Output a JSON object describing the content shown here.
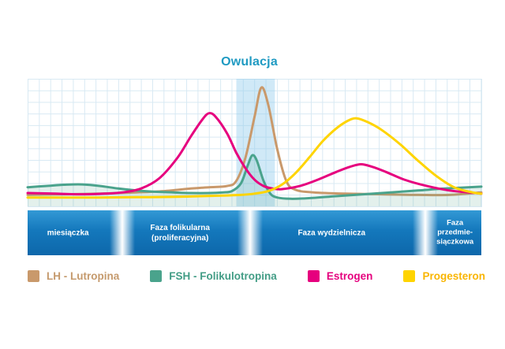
{
  "title": "Owulacja",
  "colors": {
    "title_accent": "#1f9ac2",
    "banner_blue": "#1478bc",
    "grid_line": "#d8e9f3",
    "ovulation_band": "rgba(137,199,235,0.4)"
  },
  "chart_data": {
    "type": "line",
    "title": "Owulacja",
    "xlabel": "",
    "ylabel": "",
    "grid": true,
    "x_range": [
      0,
      100
    ],
    "y_range": [
      0,
      100
    ],
    "legend_position": "bottom",
    "highlight_band": {
      "label": "Owulacja",
      "x_start": 46,
      "x_end": 54.5,
      "color": "rgba(137,199,235,0.4)"
    },
    "series": [
      {
        "name": "LH - Lutropina",
        "color": "#c9996b",
        "points": [
          [
            0,
            9
          ],
          [
            8,
            9.5
          ],
          [
            16,
            10
          ],
          [
            24,
            11
          ],
          [
            30,
            12
          ],
          [
            36,
            14
          ],
          [
            40,
            15
          ],
          [
            44,
            16
          ],
          [
            46,
            20
          ],
          [
            48,
            38
          ],
          [
            50,
            70
          ],
          [
            51.5,
            93
          ],
          [
            53,
            80
          ],
          [
            55,
            45
          ],
          [
            57,
            20
          ],
          [
            59,
            13
          ],
          [
            63,
            11
          ],
          [
            70,
            10
          ],
          [
            78,
            9.5
          ],
          [
            86,
            9
          ],
          [
            93,
            9
          ],
          [
            100,
            11
          ]
        ]
      },
      {
        "name": "FSH - Folikulotropina",
        "color": "#4aa38c",
        "fill": "rgba(82,160,139,0.16)",
        "points": [
          [
            0,
            15
          ],
          [
            4,
            16
          ],
          [
            8,
            17
          ],
          [
            12,
            17.2
          ],
          [
            16,
            16
          ],
          [
            20,
            14
          ],
          [
            24,
            12.5
          ],
          [
            28,
            11.5
          ],
          [
            32,
            11
          ],
          [
            36,
            10.5
          ],
          [
            40,
            10.5
          ],
          [
            43,
            11
          ],
          [
            45,
            12
          ],
          [
            47,
            18
          ],
          [
            48.5,
            32
          ],
          [
            49.5,
            40
          ],
          [
            50.5,
            36
          ],
          [
            52,
            20
          ],
          [
            53.5,
            10
          ],
          [
            55,
            7
          ],
          [
            58,
            6
          ],
          [
            62,
            6.5
          ],
          [
            68,
            8
          ],
          [
            74,
            9.5
          ],
          [
            80,
            11
          ],
          [
            86,
            12.5
          ],
          [
            92,
            14
          ],
          [
            100,
            15.5
          ]
        ]
      },
      {
        "name": "Estrogen",
        "color": "#e6007e",
        "points": [
          [
            0,
            10.5
          ],
          [
            6,
            10
          ],
          [
            12,
            9.5
          ],
          [
            17,
            10
          ],
          [
            21,
            11
          ],
          [
            25,
            14
          ],
          [
            29,
            22
          ],
          [
            33,
            38
          ],
          [
            36,
            55
          ],
          [
            38.5,
            68
          ],
          [
            40,
            73
          ],
          [
            41.5,
            70
          ],
          [
            44,
            57
          ],
          [
            46,
            42
          ],
          [
            48,
            30
          ],
          [
            50,
            21
          ],
          [
            52,
            16
          ],
          [
            54,
            14
          ],
          [
            56,
            13.5
          ],
          [
            60,
            16
          ],
          [
            64,
            21
          ],
          [
            68,
            27
          ],
          [
            71,
            31
          ],
          [
            73.5,
            33
          ],
          [
            76,
            31
          ],
          [
            79,
            27
          ],
          [
            83,
            21
          ],
          [
            88,
            16
          ],
          [
            93,
            12.5
          ],
          [
            100,
            10
          ]
        ]
      },
      {
        "name": "Progesteron",
        "color": "#ffd400",
        "points": [
          [
            0,
            7
          ],
          [
            8,
            7
          ],
          [
            16,
            7
          ],
          [
            24,
            7.2
          ],
          [
            32,
            7.5
          ],
          [
            38,
            8
          ],
          [
            43,
            8.5
          ],
          [
            47,
            9
          ],
          [
            50,
            10
          ],
          [
            53,
            12
          ],
          [
            56,
            17
          ],
          [
            59,
            26
          ],
          [
            62,
            38
          ],
          [
            65,
            51
          ],
          [
            68,
            61
          ],
          [
            70.5,
            67
          ],
          [
            72.5,
            69
          ],
          [
            75,
            66
          ],
          [
            78,
            60
          ],
          [
            82,
            49
          ],
          [
            86,
            36
          ],
          [
            90,
            24
          ],
          [
            94,
            15
          ],
          [
            98,
            11
          ],
          [
            100,
            10
          ]
        ]
      }
    ]
  },
  "phases": [
    {
      "label": "miesiączka"
    },
    {
      "label": "Faza folikularna\n(proliferacyjna)"
    },
    {
      "label": "Faza wydzielnicza"
    },
    {
      "label": "Faza\nprzedmie-\nsiączkowa"
    }
  ],
  "legend": [
    {
      "label": "LH - Lutropina",
      "color": "#c9996b",
      "text_color": "#c59a6d"
    },
    {
      "label": "FSH - Folikulotropina",
      "color": "#4aa38c",
      "text_color": "#439d86"
    },
    {
      "label": "Estrogen",
      "color": "#e6007e",
      "text_color": "#e5017e"
    },
    {
      "label": "Progesteron",
      "color": "#ffd400",
      "text_color": "#f9b500"
    }
  ]
}
